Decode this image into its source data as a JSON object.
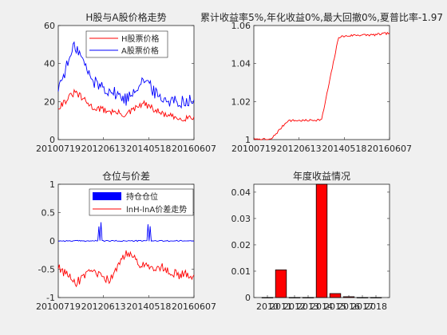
{
  "colors": {
    "background": "#f0f0f0",
    "h_share": "#ff0000",
    "a_share": "#0000ff",
    "position_fill": "#0000ff",
    "spread": "#ff0000",
    "bar_fill": "#ff0000",
    "bar_edge": "#000000"
  },
  "chart_data": [
    {
      "type": "line",
      "title": "H股与A股价格走势",
      "xlabel": "",
      "ylabel": "",
      "ylim": [
        0,
        60
      ],
      "yticks": [
        0,
        20,
        40,
        60
      ],
      "xtick_labels": [
        "20100719",
        "20120613",
        "20140518",
        "20160607"
      ],
      "grid": false,
      "legend": "top-right",
      "x": [
        "2010",
        "2011",
        "2012",
        "2013",
        "2014",
        "2015",
        "2016",
        "2017",
        "2018"
      ],
      "series": [
        {
          "name": "H股票价格",
          "color": "#ff0000",
          "values": [
            17,
            25,
            17,
            15,
            13,
            19,
            14,
            11,
            12
          ]
        },
        {
          "name": "A股票价格",
          "color": "#0000ff",
          "values": [
            27,
            50,
            31,
            26,
            21,
            32,
            22,
            20,
            21
          ]
        }
      ]
    },
    {
      "type": "line",
      "title": "累计收益率5%,年化收益0%,最大回撤0%,夏普比率-1.97",
      "xlabel": "",
      "ylabel": "",
      "ylim": [
        1,
        1.06
      ],
      "yticks": [
        1,
        1.02,
        1.04,
        1.06
      ],
      "ytick_labels": [
        "1",
        "1.02",
        "1.04",
        "1.06"
      ],
      "xtick_labels": [
        "20100719",
        "20120613",
        "20140518",
        "20160607"
      ],
      "grid": false,
      "x": [
        "2010",
        "2011",
        "2011b",
        "2012",
        "2014",
        "2014b",
        "2015",
        "2016",
        "2018"
      ],
      "series": [
        {
          "name": "",
          "color": "#ff0000",
          "values": [
            1.0,
            1.0,
            1.01,
            1.01,
            1.0105,
            1.054,
            1.055,
            1.055,
            1.056
          ]
        }
      ]
    },
    {
      "type": "line",
      "title": "仓位与价差",
      "xlabel": "",
      "ylabel": "",
      "ylim": [
        -1,
        1
      ],
      "yticks": [
        -1,
        -0.5,
        0,
        0.5,
        1
      ],
      "ytick_labels": [
        "-1",
        "-0.5",
        "0",
        "0.5",
        "1"
      ],
      "xtick_labels": [
        "20100719",
        "20120613",
        "20140518",
        "20160607"
      ],
      "grid": false,
      "legend": "top-right",
      "series": [
        {
          "name": "持仓仓位",
          "color": "#0000ff",
          "values": [
            0,
            0,
            0,
            0.3,
            0,
            0.3,
            0,
            0,
            0
          ]
        },
        {
          "name": "lnH-lnA价差走势",
          "color": "#ff0000",
          "values": [
            -0.45,
            -0.75,
            -0.55,
            -0.7,
            -0.2,
            -0.45,
            -0.45,
            -0.6,
            -0.6
          ]
        }
      ]
    },
    {
      "type": "bar",
      "title": "年度收益情况",
      "xlabel": "",
      "ylabel": "",
      "ylim": [
        0,
        0.043
      ],
      "yticks": [
        0,
        0.01,
        0.02,
        0.03,
        0.04
      ],
      "ytick_labels": [
        "0",
        "0.01",
        "0.02",
        "0.03",
        "0.04"
      ],
      "categories": [
        "2010",
        "2011",
        "2012",
        "2013",
        "2014",
        "2015",
        "2016",
        "2017",
        "2018"
      ],
      "values": [
        0,
        0.0105,
        0,
        0,
        0.043,
        0.0015,
        0.0003,
        0,
        0
      ]
    }
  ]
}
